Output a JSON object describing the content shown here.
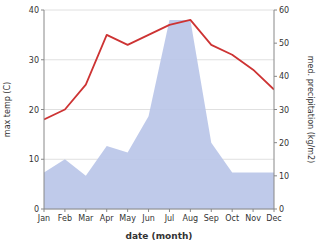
{
  "chart_data": {
    "type": "line",
    "categories": [
      "Jan",
      "Feb",
      "Mar",
      "Apr",
      "May",
      "Jun",
      "Jul",
      "Aug",
      "Sep",
      "Oct",
      "Nov",
      "Dec"
    ],
    "series": [
      {
        "type": "area",
        "axis": "y2",
        "color": "#b8c4e8",
        "values": [
          11,
          15,
          10,
          19,
          17,
          28,
          57,
          57,
          20,
          11,
          11,
          11
        ]
      },
      {
        "type": "line",
        "color": "#cd3333",
        "values": [
          18,
          20,
          25,
          35,
          33,
          35,
          37,
          38,
          33,
          31,
          28,
          24
        ]
      }
    ],
    "x_label": "date (month)",
    "y_label": "max temp (C)",
    "y2_label": "med. precipitation (kg/m2)",
    "ylim": [
      0,
      40
    ],
    "yticks": [
      0,
      10,
      20,
      30,
      40
    ],
    "y2lim": [
      0,
      60
    ],
    "y2ticks": [
      0,
      10,
      20,
      30,
      40,
      50,
      60
    ],
    "grid": true
  }
}
